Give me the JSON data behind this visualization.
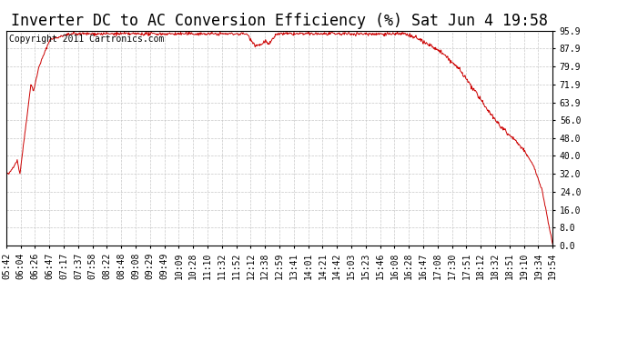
{
  "title": "Inverter DC to AC Conversion Efficiency (%) Sat Jun 4 19:58",
  "copyright_text": "Copyright 2011 Cartronics.com",
  "background_color": "#ffffff",
  "plot_bg_color": "#ffffff",
  "line_color": "#cc0000",
  "grid_color": "#c8c8c8",
  "yticks": [
    0.0,
    8.0,
    16.0,
    24.0,
    32.0,
    40.0,
    48.0,
    56.0,
    63.9,
    71.9,
    79.9,
    87.9,
    95.9
  ],
  "ylim": [
    0.0,
    95.9
  ],
  "xtick_labels": [
    "05:42",
    "06:04",
    "06:26",
    "06:47",
    "07:17",
    "07:37",
    "07:58",
    "08:22",
    "08:48",
    "09:08",
    "09:29",
    "09:49",
    "10:09",
    "10:28",
    "11:10",
    "11:32",
    "11:52",
    "12:12",
    "12:38",
    "12:59",
    "13:41",
    "14:01",
    "14:21",
    "14:42",
    "15:03",
    "15:23",
    "15:46",
    "16:08",
    "16:28",
    "16:47",
    "17:08",
    "17:30",
    "17:51",
    "18:12",
    "18:32",
    "18:51",
    "19:10",
    "19:34",
    "19:54"
  ],
  "title_fontsize": 12,
  "copyright_fontsize": 7,
  "tick_fontsize": 7,
  "line_width": 0.7
}
